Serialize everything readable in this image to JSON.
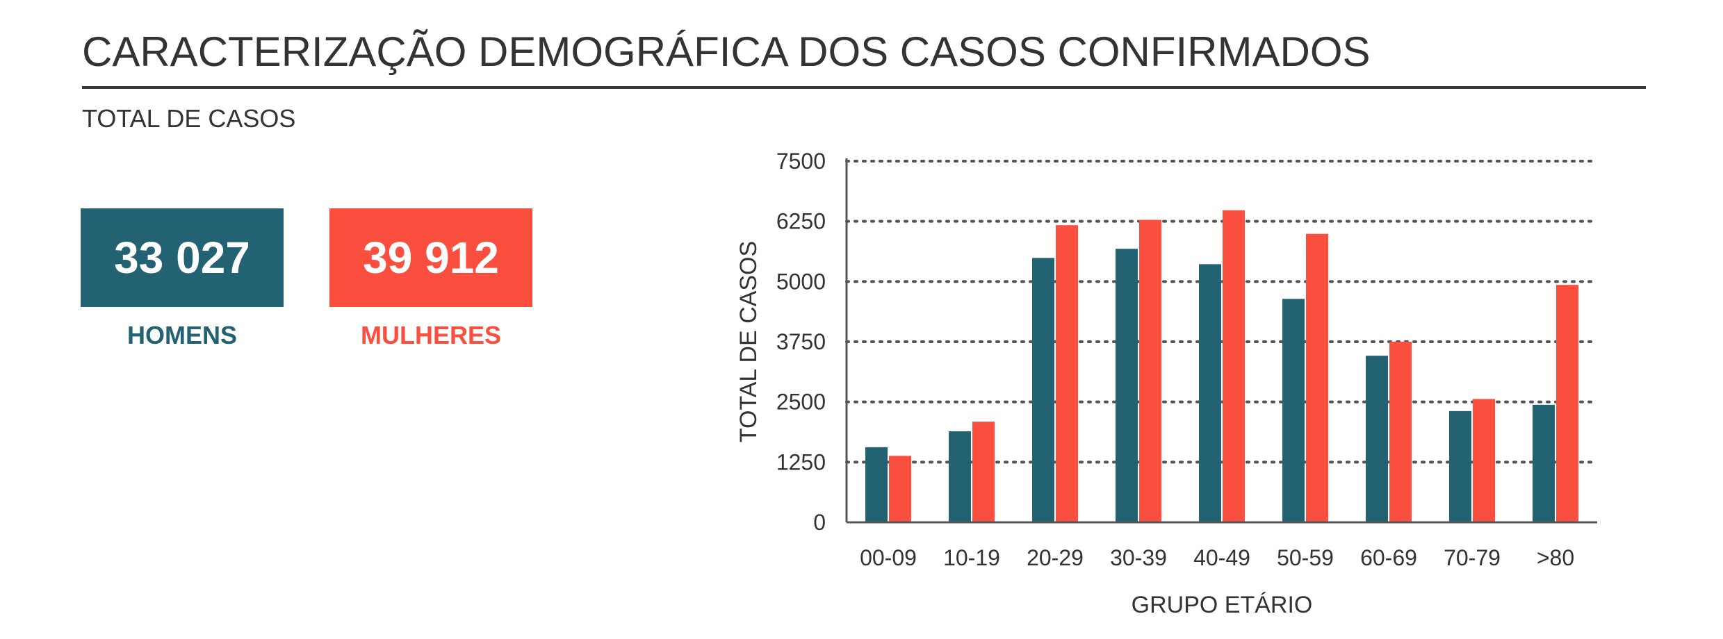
{
  "header": {
    "title": "CARACTERIZAÇÃO DEMOGRÁFICA DOS CASOS CONFIRMADOS",
    "subtitle": "TOTAL DE CASOS"
  },
  "kpis": {
    "men": {
      "value": "33 027",
      "label": "HOMENS",
      "color": "#236272"
    },
    "women": {
      "value": "39 912",
      "label": "MULHERES",
      "color": "#fa4e3e"
    }
  },
  "chart_data": {
    "type": "bar",
    "categories": [
      "00-09",
      "10-19",
      "20-29",
      "30-39",
      "40-49",
      "50-59",
      "60-69",
      "70-79",
      ">80"
    ],
    "series": [
      {
        "color": "#236272",
        "values": [
          1560,
          1890,
          5490,
          5680,
          5360,
          4640,
          3460,
          2310,
          2440
        ]
      },
      {
        "color": "#fa4e3e",
        "values": [
          1380,
          2090,
          6170,
          6280,
          6480,
          5990,
          3750,
          2560,
          4930
        ]
      }
    ],
    "xlabel": "GRUPO ETÁRIO",
    "ylabel": "TOTAL DE CASOS",
    "ylim": [
      0,
      7500
    ],
    "yticks": [
      0,
      1250,
      2500,
      3750,
      5000,
      6250,
      7500
    ],
    "grid": "dotted-horizontal"
  }
}
